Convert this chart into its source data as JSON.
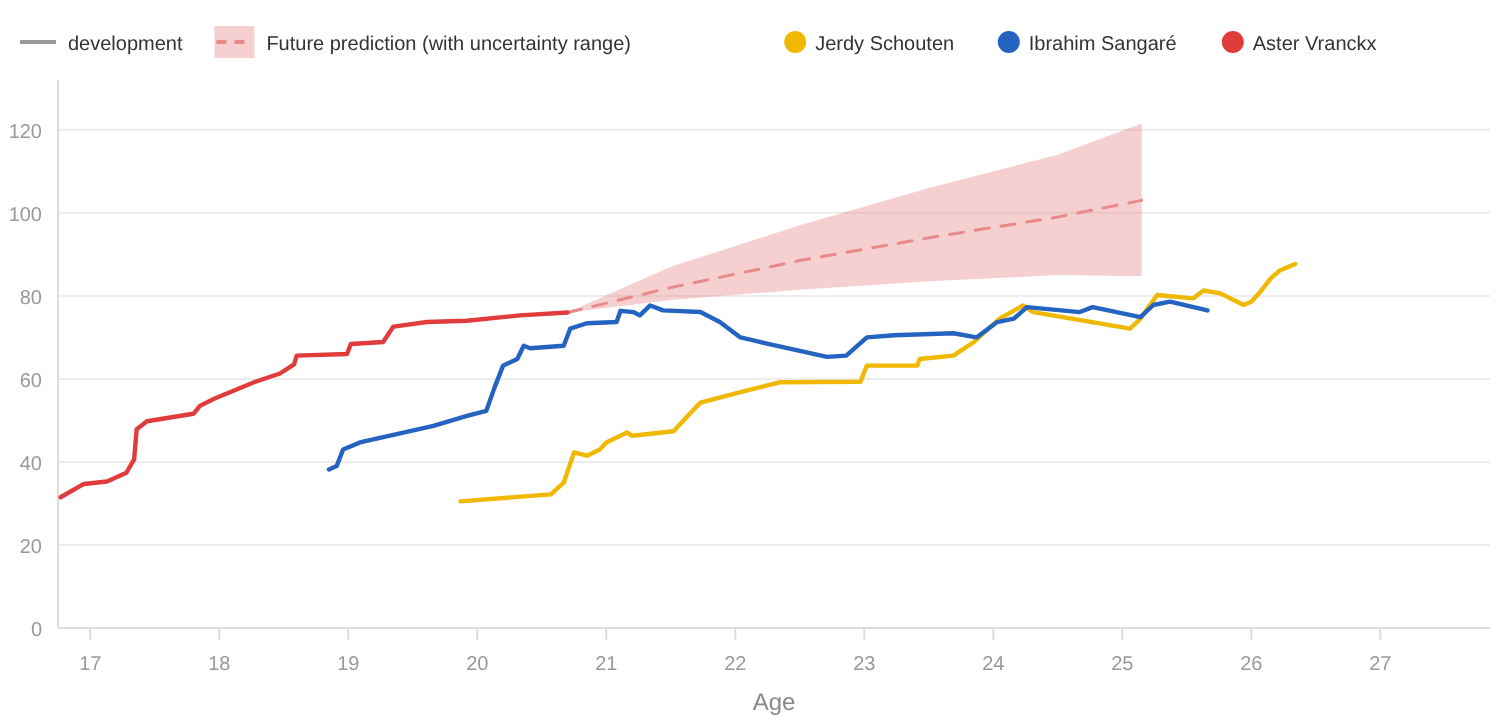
{
  "chart_data": {
    "type": "line",
    "xlabel": "Age",
    "xlim": [
      16.75,
      27.85
    ],
    "xticks": [
      17,
      18,
      19,
      20,
      21,
      22,
      23,
      24,
      25,
      26,
      27
    ],
    "ylim": [
      0,
      132
    ],
    "yticks": [
      0,
      20,
      40,
      60,
      80,
      100,
      120
    ],
    "grid": "y",
    "legend": "top",
    "annotations": [
      "development"
    ],
    "series": [
      {
        "name": "Future prediction (with uncertainty range)",
        "type": "line",
        "line_style": "dashed",
        "color": "#e88a8a",
        "x": [
          20.7,
          21.5,
          22.5,
          23.5,
          24.5,
          25.15
        ],
        "values": [
          76,
          82,
          88.5,
          94,
          99,
          103
        ],
        "lower": [
          76,
          79,
          81.5,
          83.5,
          85,
          84.7
        ],
        "upper": [
          76,
          87,
          97,
          106,
          114,
          121.5
        ]
      },
      {
        "name": "Jerdy Schouten",
        "color": "#f0b800",
        "x": [
          19.87,
          20.57,
          20.67,
          20.75,
          20.85,
          20.95,
          21.0,
          21.16,
          21.2,
          21.52,
          21.62,
          21.73,
          22.04,
          22.35,
          22.97,
          23.02,
          23.41,
          23.43,
          23.69,
          23.85,
          24.05,
          24.23,
          24.31,
          25.06,
          25.14,
          25.27,
          25.55,
          25.63,
          25.76,
          25.94,
          26.0,
          26.07,
          26.15,
          26.22,
          26.34
        ],
        "values": [
          30.5,
          32.2,
          35,
          42.3,
          41.5,
          43,
          44.7,
          47.1,
          46.3,
          47.4,
          50.7,
          54.3,
          56.8,
          59.2,
          59.3,
          63.2,
          63.2,
          64.8,
          65.6,
          68.9,
          74.5,
          77.7,
          76.1,
          72.1,
          74.5,
          80.2,
          79.4,
          81.3,
          80.6,
          77.8,
          78.6,
          81,
          84.2,
          86.1,
          87.7
        ]
      },
      {
        "name": "Ibrahim Sangaré",
        "color": "#2463bf",
        "x": [
          18.85,
          18.91,
          18.96,
          19.09,
          19.66,
          19.92,
          20.07,
          20.13,
          20.2,
          20.31,
          20.36,
          20.41,
          20.67,
          20.72,
          20.85,
          21.08,
          21.11,
          21.21,
          21.26,
          21.34,
          21.44,
          21.73,
          21.88,
          22.04,
          22.19,
          22.71,
          22.86,
          23.02,
          23.23,
          23.69,
          23.87,
          24.03,
          24.16,
          24.26,
          24.67,
          24.77,
          25.14,
          25.24,
          25.37,
          25.66
        ],
        "values": [
          38.2,
          39,
          43,
          44.7,
          48.7,
          51.1,
          52.3,
          57.6,
          63.2,
          64.8,
          68,
          67.4,
          68,
          72.1,
          73.4,
          73.7,
          76.4,
          76.1,
          75.3,
          77.7,
          76.5,
          76.1,
          73.7,
          70,
          68.9,
          65.3,
          65.6,
          70,
          70.5,
          71,
          70,
          73.7,
          74.5,
          77.3,
          76.1,
          77.3,
          74.9,
          77.8,
          78.6,
          76.5
        ]
      },
      {
        "name": "Aster Vranckx",
        "color": "#e03c3c",
        "x": [
          16.77,
          16.95,
          17.13,
          17.28,
          17.34,
          17.36,
          17.44,
          17.8,
          17.85,
          17.96,
          18.27,
          18.47,
          18.58,
          18.6,
          18.99,
          19.02,
          19.27,
          19.35,
          19.61,
          19.92,
          20.33,
          20.7
        ],
        "values": [
          31.5,
          34.7,
          35.3,
          37.4,
          40.6,
          47.9,
          49.8,
          51.6,
          53.5,
          55.2,
          59.2,
          61.3,
          63.5,
          65.6,
          66,
          68.4,
          68.9,
          72.6,
          73.7,
          74,
          75.3,
          76
        ]
      }
    ]
  }
}
